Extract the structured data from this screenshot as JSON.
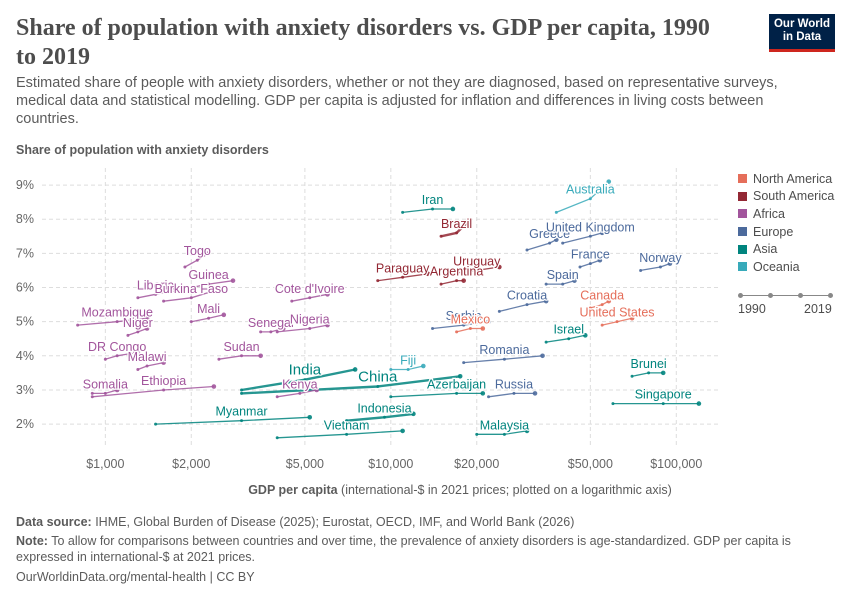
{
  "header": {
    "title": "Share of population with anxiety disorders vs. GDP per capita, 1990 to 2019",
    "subtitle": "Estimated share of people with anxiety disorders, whether or not they are diagnosed, based on representative surveys, medical data and statistical modelling. GDP per capita is adjusted for inflation and differences in living costs between countries.",
    "logo_line1": "Our World",
    "logo_line2": "in Data"
  },
  "axis": {
    "y_title": "Share of population with anxiety disorders",
    "x_title_bold": "GDP per capita",
    "x_title_rest": " (international-$ in 2021 prices; plotted on a logarithmic axis)"
  },
  "legend": {
    "items": [
      {
        "label": "North America",
        "color": "#e56e5a"
      },
      {
        "label": "South America",
        "color": "#932834"
      },
      {
        "label": "Africa",
        "color": "#a2559c"
      },
      {
        "label": "Europe",
        "color": "#4c6a9c"
      },
      {
        "label": "Asia",
        "color": "#00847e"
      },
      {
        "label": "Oceania",
        "color": "#38aaba"
      }
    ],
    "time_start": "1990",
    "time_end": "2019"
  },
  "footer": {
    "source_label": "Data source:",
    "source_text": " IHME, Global Burden of Disease (2025); Eurostat, OECD, IMF, and World Bank (2026)",
    "note_label": "Note:",
    "note_text": " To allow for comparisons between countries and over time, the prevalence of anxiety disorders is age-standardized. GDP per capita is expressed in international-$ at 2021 prices.",
    "url": "OurWorldinData.org/mental-health | CC BY"
  },
  "chart_data": {
    "type": "scatter",
    "title": "Share of population with anxiety disorders vs. GDP per capita, 1990 to 2019",
    "xlabel": "GDP per capita (international-$ in 2021 prices; plotted on a logarithmic axis)",
    "ylabel": "Share of population with anxiety disorders",
    "x_scale": "log",
    "xlim": [
      600,
      140000
    ],
    "ylim": [
      1.3,
      9.5
    ],
    "x_ticks": [
      1000,
      2000,
      5000,
      10000,
      20000,
      50000,
      100000
    ],
    "x_tick_labels": [
      "$1,000",
      "$2,000",
      "$5,000",
      "$10,000",
      "$20,000",
      "$50,000",
      "$100,000"
    ],
    "y_ticks": [
      2,
      3,
      4,
      5,
      6,
      7,
      8,
      9
    ],
    "y_tick_labels": [
      "2%",
      "3%",
      "4%",
      "5%",
      "6%",
      "7%",
      "8%",
      "9%"
    ],
    "grid": true,
    "legend_position": "right",
    "region_colors": {
      "North America": "#e56e5a",
      "South America": "#932834",
      "Africa": "#a2559c",
      "Europe": "#4c6a9c",
      "Asia": "#00847e",
      "Oceania": "#38aaba"
    },
    "series": [
      {
        "name": "Australia",
        "region": "Oceania",
        "x": [
          38000,
          50000,
          58000
        ],
        "y": [
          8.2,
          8.6,
          9.1
        ]
      },
      {
        "name": "Iran",
        "region": "Asia",
        "x": [
          11000,
          14000,
          16500
        ],
        "y": [
          8.2,
          8.3,
          8.3
        ]
      },
      {
        "name": "Brazil",
        "region": "South America",
        "x": [
          15000,
          17000,
          18500
        ],
        "y": [
          7.5,
          7.6,
          7.9
        ]
      },
      {
        "name": "Greece",
        "region": "Europe",
        "x": [
          30000,
          36000,
          38000
        ],
        "y": [
          7.1,
          7.3,
          7.4
        ]
      },
      {
        "name": "United Kingdom",
        "region": "Europe",
        "x": [
          40000,
          50000,
          55000
        ],
        "y": [
          7.3,
          7.5,
          7.6
        ]
      },
      {
        "name": "Togo",
        "region": "Africa",
        "x": [
          1900,
          2100,
          2300
        ],
        "y": [
          6.6,
          6.8,
          7.0
        ]
      },
      {
        "name": "France",
        "region": "Europe",
        "x": [
          46000,
          50000,
          54000
        ],
        "y": [
          6.6,
          6.7,
          6.8
        ]
      },
      {
        "name": "Norway",
        "region": "Europe",
        "x": [
          75000,
          88000,
          95000
        ],
        "y": [
          6.5,
          6.6,
          6.7
        ]
      },
      {
        "name": "Uruguay",
        "region": "South America",
        "x": [
          16000,
          20000,
          24000
        ],
        "y": [
          6.4,
          6.5,
          6.6
        ]
      },
      {
        "name": "Paraguay",
        "region": "South America",
        "x": [
          9000,
          11000,
          13500
        ],
        "y": [
          6.2,
          6.3,
          6.4
        ]
      },
      {
        "name": "Argentina",
        "region": "South America",
        "x": [
          15000,
          17000,
          18000
        ],
        "y": [
          6.1,
          6.2,
          6.2
        ]
      },
      {
        "name": "Guinea",
        "region": "Africa",
        "x": [
          2000,
          2300,
          2800
        ],
        "y": [
          6.0,
          6.1,
          6.2
        ]
      },
      {
        "name": "Spain",
        "region": "Europe",
        "x": [
          35000,
          40000,
          44000
        ],
        "y": [
          6.1,
          6.1,
          6.2
        ]
      },
      {
        "name": "Liberia",
        "region": "Africa",
        "x": [
          1300,
          1500,
          1700
        ],
        "y": [
          5.7,
          5.8,
          5.9
        ]
      },
      {
        "name": "Burkina Faso",
        "region": "Africa",
        "x": [
          1600,
          2000,
          2400
        ],
        "y": [
          5.6,
          5.7,
          5.9
        ]
      },
      {
        "name": "Cote d'Ivoire",
        "region": "Africa",
        "x": [
          4500,
          5200,
          6000
        ],
        "y": [
          5.6,
          5.7,
          5.8
        ]
      },
      {
        "name": "Croatia",
        "region": "Europe",
        "x": [
          24000,
          30000,
          35000
        ],
        "y": [
          5.3,
          5.5,
          5.6
        ]
      },
      {
        "name": "Canada",
        "region": "North America",
        "x": [
          50000,
          55000,
          58000
        ],
        "y": [
          5.4,
          5.5,
          5.6
        ]
      },
      {
        "name": "Mozambique",
        "region": "Africa",
        "x": [
          800,
          1100,
          1400
        ],
        "y": [
          4.9,
          5.0,
          5.1
        ]
      },
      {
        "name": "Mali",
        "region": "Africa",
        "x": [
          2000,
          2300,
          2600
        ],
        "y": [
          5.0,
          5.1,
          5.2
        ]
      },
      {
        "name": "Serbia",
        "region": "Europe",
        "x": [
          14000,
          18000,
          22000
        ],
        "y": [
          4.8,
          4.9,
          5.0
        ]
      },
      {
        "name": "United States",
        "region": "North America",
        "x": [
          55000,
          62000,
          70000
        ],
        "y": [
          4.9,
          5.0,
          5.1
        ]
      },
      {
        "name": "Niger",
        "region": "Africa",
        "x": [
          1200,
          1300,
          1400
        ],
        "y": [
          4.6,
          4.7,
          4.8
        ]
      },
      {
        "name": "Senegal",
        "region": "Africa",
        "x": [
          3500,
          3800,
          4200
        ],
        "y": [
          4.7,
          4.7,
          4.8
        ]
      },
      {
        "name": "Nigeria",
        "region": "Africa",
        "x": [
          4000,
          5200,
          6000
        ],
        "y": [
          4.7,
          4.8,
          4.9
        ]
      },
      {
        "name": "Mexico",
        "region": "North America",
        "x": [
          17000,
          19000,
          21000
        ],
        "y": [
          4.7,
          4.8,
          4.8
        ]
      },
      {
        "name": "Israel",
        "region": "Asia",
        "x": [
          35000,
          42000,
          48000
        ],
        "y": [
          4.4,
          4.5,
          4.6
        ]
      },
      {
        "name": "DR Congo",
        "region": "Africa",
        "x": [
          1000,
          1100,
          1300
        ],
        "y": [
          3.9,
          4.0,
          4.1
        ]
      },
      {
        "name": "Sudan",
        "region": "Africa",
        "x": [
          2500,
          3000,
          3500
        ],
        "y": [
          3.9,
          4.0,
          4.0
        ]
      },
      {
        "name": "Romania",
        "region": "Europe",
        "x": [
          18000,
          25000,
          34000
        ],
        "y": [
          3.8,
          3.9,
          4.0
        ]
      },
      {
        "name": "Malawi",
        "region": "Africa",
        "x": [
          1300,
          1400,
          1600
        ],
        "y": [
          3.6,
          3.7,
          3.8
        ]
      },
      {
        "name": "India",
        "region": "Asia",
        "x": [
          3000,
          5000,
          7500
        ],
        "y": [
          3.0,
          3.3,
          3.6
        ]
      },
      {
        "name": "Fiji",
        "region": "Oceania",
        "x": [
          10000,
          11500,
          13000
        ],
        "y": [
          3.6,
          3.6,
          3.7
        ]
      },
      {
        "name": "China",
        "region": "Asia",
        "x": [
          3000,
          9000,
          17500
        ],
        "y": [
          2.9,
          3.1,
          3.4
        ]
      },
      {
        "name": "Brunei",
        "region": "Asia",
        "x": [
          70000,
          80000,
          90000
        ],
        "y": [
          3.4,
          3.5,
          3.5
        ]
      },
      {
        "name": "Ethiopia",
        "region": "Africa",
        "x": [
          900,
          1600,
          2400
        ],
        "y": [
          2.8,
          3.0,
          3.1
        ]
      },
      {
        "name": "Somalia",
        "region": "Africa",
        "x": [
          900,
          1000,
          1100
        ],
        "y": [
          2.9,
          2.9,
          3.0
        ]
      },
      {
        "name": "Kenya",
        "region": "Africa",
        "x": [
          4000,
          4800,
          5500
        ],
        "y": [
          2.8,
          2.9,
          3.0
        ]
      },
      {
        "name": "Azerbaijan",
        "region": "Asia",
        "x": [
          10000,
          17000,
          21000
        ],
        "y": [
          2.8,
          2.9,
          2.9
        ]
      },
      {
        "name": "Russia",
        "region": "Europe",
        "x": [
          22000,
          27000,
          32000
        ],
        "y": [
          2.8,
          2.9,
          2.9
        ]
      },
      {
        "name": "Singapore",
        "region": "Asia",
        "x": [
          60000,
          90000,
          120000
        ],
        "y": [
          2.6,
          2.6,
          2.6
        ]
      },
      {
        "name": "Myanmar",
        "region": "Asia",
        "x": [
          1500,
          3000,
          5200
        ],
        "y": [
          2.0,
          2.1,
          2.2
        ]
      },
      {
        "name": "Indonesia",
        "region": "Asia",
        "x": [
          7000,
          9500,
          12000
        ],
        "y": [
          2.1,
          2.2,
          2.3
        ]
      },
      {
        "name": "Malaysia",
        "region": "Asia",
        "x": [
          20000,
          25000,
          30000
        ],
        "y": [
          1.7,
          1.7,
          1.8
        ]
      },
      {
        "name": "Vietnam",
        "region": "Asia",
        "x": [
          4000,
          7000,
          11000
        ],
        "y": [
          1.6,
          1.7,
          1.8
        ]
      }
    ]
  }
}
